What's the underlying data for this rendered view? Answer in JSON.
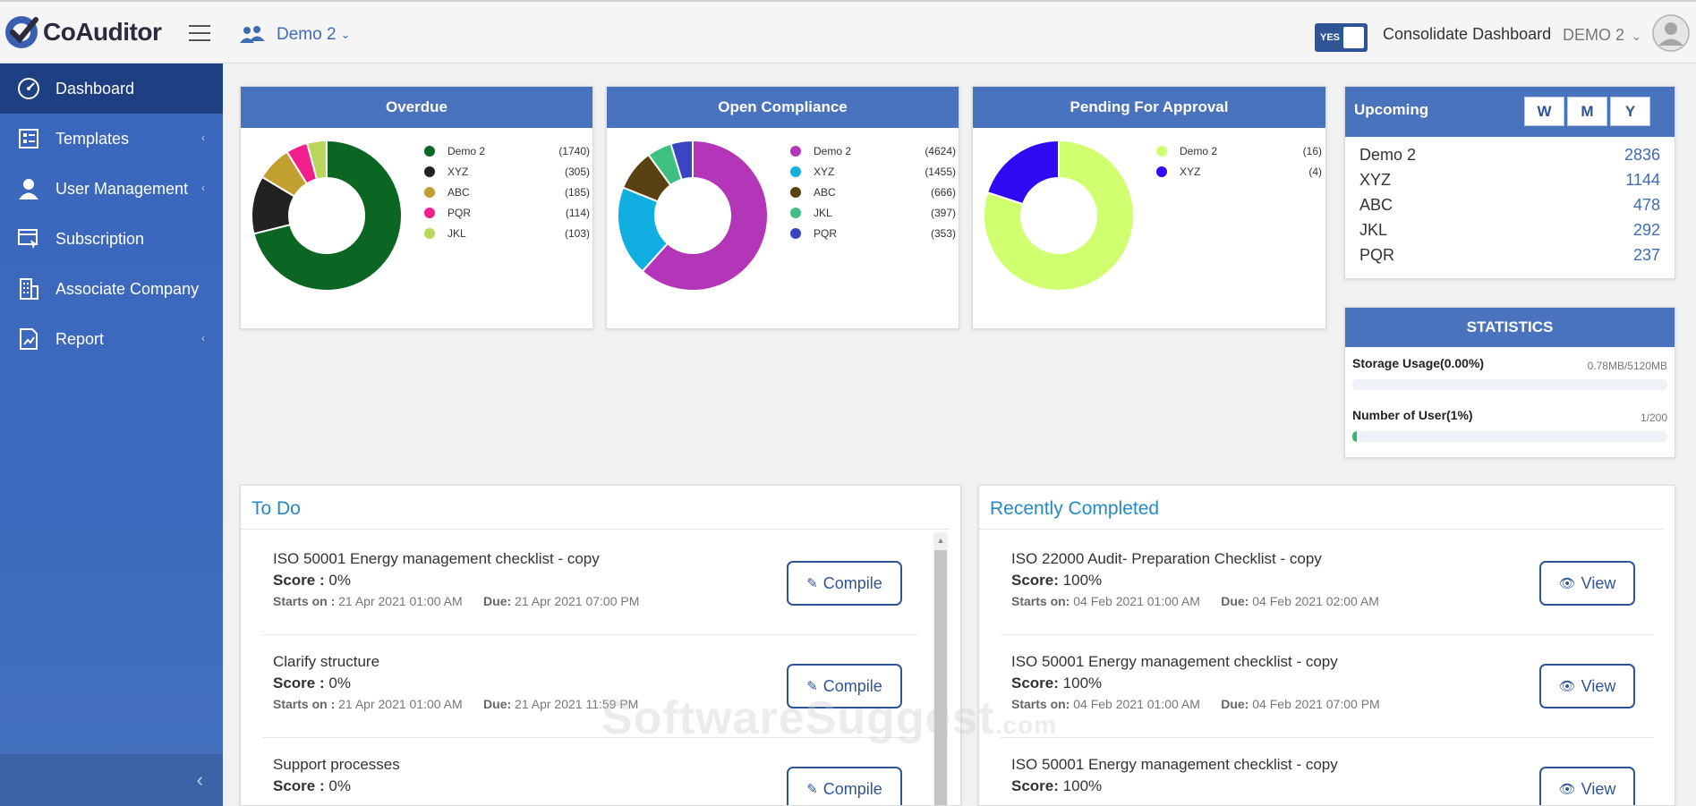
{
  "app": {
    "name": "CoAuditor"
  },
  "header": {
    "company": "Demo 2",
    "toggle_label": "YES",
    "consolidate_label": "Consolidate Dashboard",
    "user_company": "DEMO 2"
  },
  "sidebar": {
    "items": [
      {
        "label": "Dashboard",
        "icon": "dashboard-icon"
      },
      {
        "label": "Templates",
        "icon": "templates-icon"
      },
      {
        "label": "User Management",
        "icon": "user-icon"
      },
      {
        "label": "Subscription",
        "icon": "subscription-icon"
      },
      {
        "label": "Associate Company",
        "icon": "building-icon"
      },
      {
        "label": "Report",
        "icon": "report-icon"
      }
    ],
    "collapse_glyph": "‹"
  },
  "chart_data": [
    {
      "type": "pie",
      "title": "Overdue",
      "categories": [
        "Demo 2",
        "XYZ",
        "ABC",
        "PQR",
        "JKL"
      ],
      "values": [
        1740,
        305,
        185,
        114,
        103
      ],
      "value_labels": [
        "(1740)",
        "(305)",
        "(185)",
        "(114)",
        "(103)"
      ],
      "colors": [
        "#0b6623",
        "#222222",
        "#c2a030",
        "#f21e8c",
        "#b8d65a"
      ]
    },
    {
      "type": "pie",
      "title": "Open Compliance",
      "categories": [
        "Demo 2",
        "XYZ",
        "ABC",
        "JKL",
        "PQR"
      ],
      "values": [
        4624,
        1455,
        666,
        397,
        353
      ],
      "value_labels": [
        "(4624)",
        "(1455)",
        "(666)",
        "(397)",
        "(353)"
      ],
      "colors": [
        "#b335b8",
        "#11aee2",
        "#5a4112",
        "#40bf82",
        "#3b45c2"
      ]
    },
    {
      "type": "pie",
      "title": "Pending For Approval",
      "categories": [
        "Demo 2",
        "XYZ"
      ],
      "values": [
        16,
        4
      ],
      "value_labels": [
        "(16)",
        "(4)"
      ],
      "colors": [
        "#d0ff70",
        "#2e0af5"
      ]
    }
  ],
  "upcoming": {
    "title": "Upcoming",
    "buttons": [
      "W",
      "M",
      "Y"
    ],
    "rows": [
      {
        "name": "Demo 2",
        "value": "2836"
      },
      {
        "name": "XYZ",
        "value": "1144"
      },
      {
        "name": "ABC",
        "value": "478"
      },
      {
        "name": "JKL",
        "value": "292"
      },
      {
        "name": "PQR",
        "value": "237"
      }
    ]
  },
  "statistics": {
    "title": "STATISTICS",
    "storage_label": "Storage Usage(0.00%)",
    "storage_value": "0.78MB/5120MB",
    "storage_fraction": 0.0,
    "users_label": "Number of User(1%)",
    "users_value": "1/200",
    "users_fraction": 0.01
  },
  "todo": {
    "title": "To Do",
    "score_label": "Score :",
    "starts_label": "Starts on :",
    "due_label": "Due:",
    "button_label": "Compile",
    "items": [
      {
        "title": "ISO 50001 Energy management checklist - copy",
        "score": "0%",
        "starts": "21 Apr 2021 01:00 AM",
        "due": "21 Apr 2021 07:00 PM"
      },
      {
        "title": "Clarify structure",
        "score": "0%",
        "starts": "21 Apr 2021 01:00 AM",
        "due": "21 Apr 2021 11:59 PM"
      },
      {
        "title": "Support processes",
        "score": "0%"
      }
    ]
  },
  "completed": {
    "title": "Recently Completed",
    "score_label": "Score:",
    "starts_label": "Starts on:",
    "due_label": "Due:",
    "button_label": "View",
    "items": [
      {
        "title": "ISO 22000 Audit- Preparation Checklist - copy",
        "score": "100%",
        "starts": "04 Feb 2021 01:00 AM",
        "due": "04 Feb 2021 02:00 AM"
      },
      {
        "title": "ISO 50001 Energy management checklist - copy",
        "score": "100%",
        "starts": "04 Feb 2021 01:00 AM",
        "due": "04 Feb 2021 07:00 PM"
      },
      {
        "title": "ISO 50001 Energy management checklist - copy",
        "score": "100%"
      }
    ]
  },
  "watermark": {
    "main": "SoftwareSuggest",
    "suffix": ".com"
  }
}
